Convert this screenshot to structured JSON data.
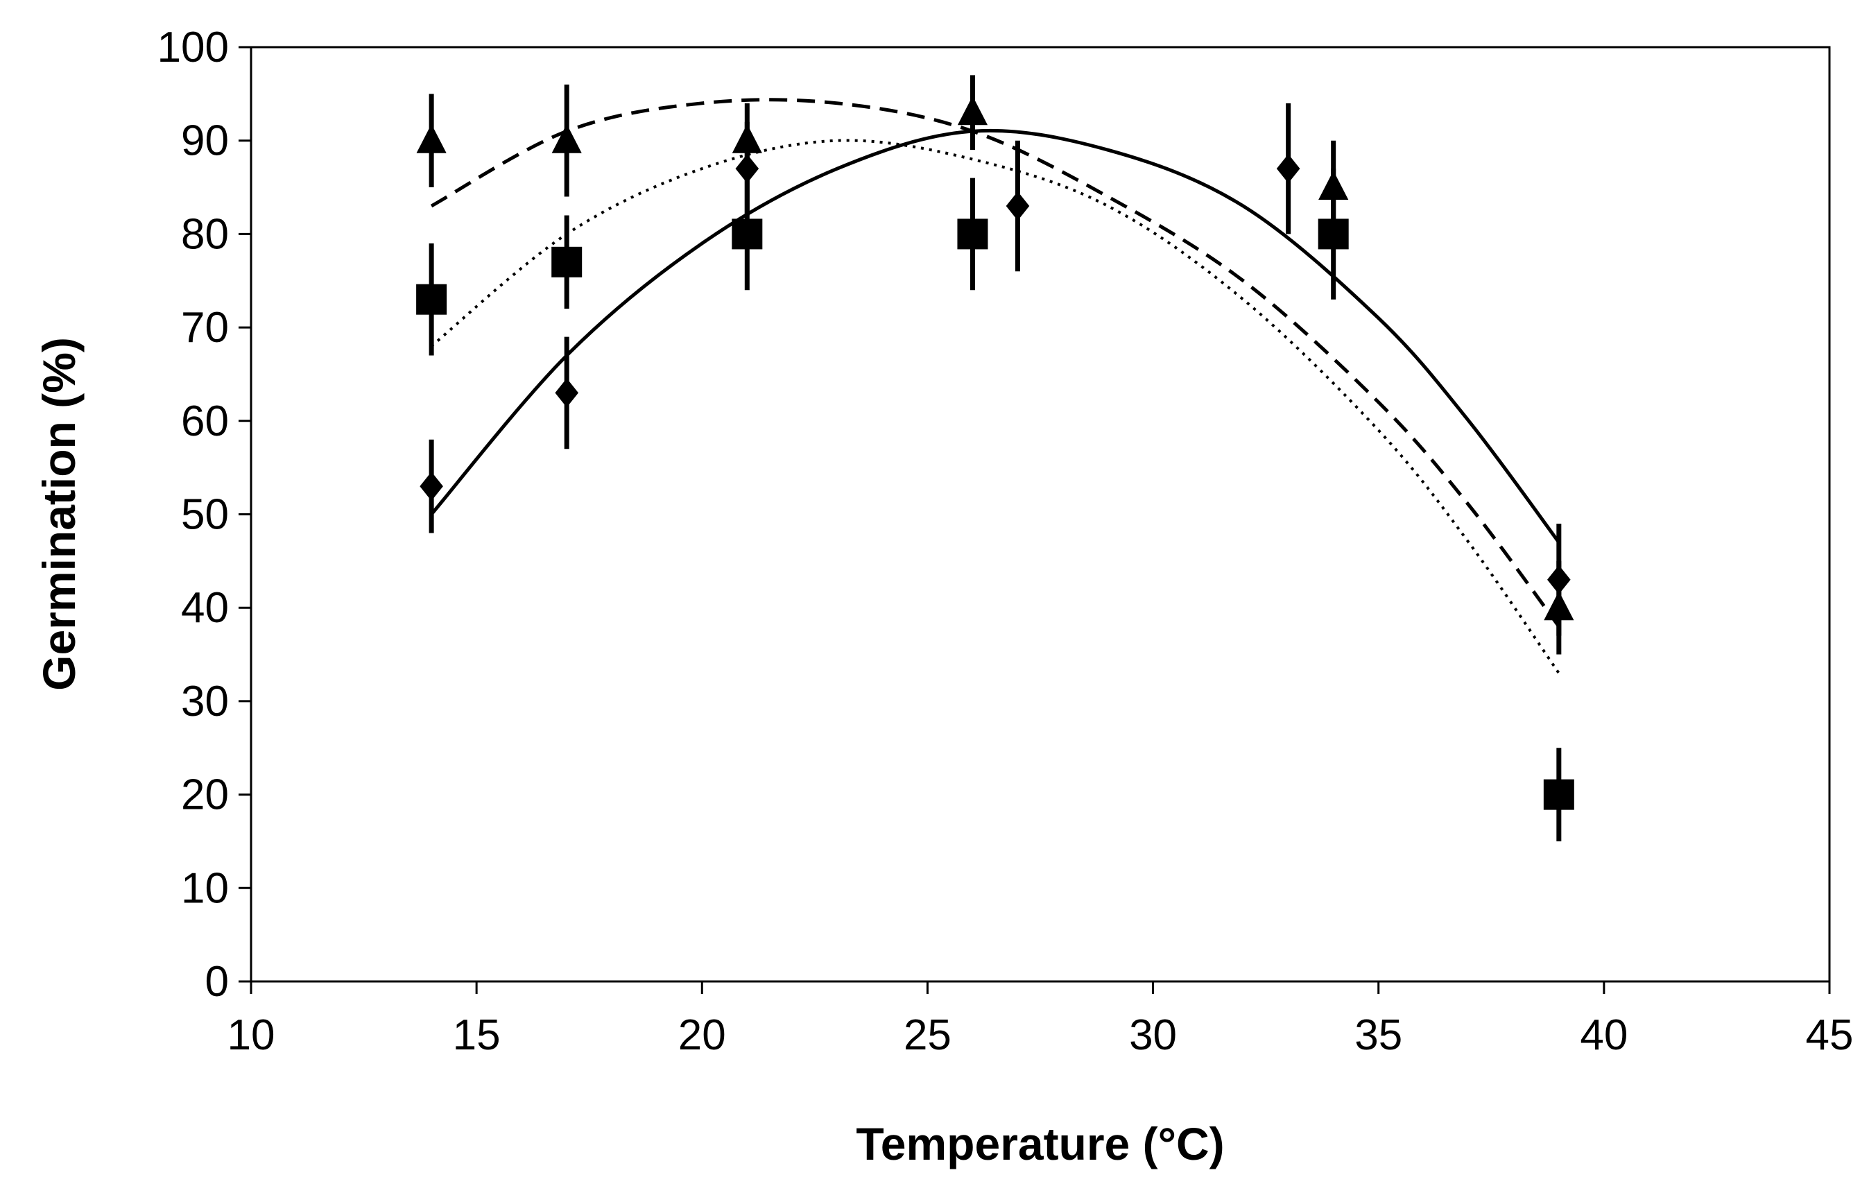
{
  "chart_data": {
    "type": "scatter",
    "title": "",
    "xlabel": "Temperature (°C)",
    "ylabel": "Germination (%)",
    "xlim": [
      10,
      45
    ],
    "ylim": [
      0,
      100
    ],
    "xticks": [
      10,
      15,
      20,
      25,
      30,
      35,
      40,
      45
    ],
    "yticks": [
      0,
      10,
      20,
      30,
      40,
      50,
      60,
      70,
      80,
      90,
      100
    ],
    "grid": false,
    "legend": "none",
    "series": [
      {
        "name": "diamonds",
        "marker": "diamond",
        "fit_line": "solid",
        "points": [
          {
            "x": 14,
            "y": 53,
            "err": 5
          },
          {
            "x": 17,
            "y": 63,
            "err": 6
          },
          {
            "x": 21,
            "y": 87,
            "err": 5
          },
          {
            "x": 27,
            "y": 83,
            "err": 7
          },
          {
            "x": 33,
            "y": 87,
            "err": 7
          },
          {
            "x": 39,
            "y": 43,
            "err": 6
          }
        ],
        "fit": {
          "x": [
            14,
            17,
            20,
            23,
            26,
            29,
            32,
            35,
            37,
            39
          ],
          "y": [
            50,
            67,
            79,
            87,
            91,
            89,
            83,
            71,
            60,
            47
          ]
        }
      },
      {
        "name": "squares",
        "marker": "square",
        "fit_line": "dotted",
        "points": [
          {
            "x": 14,
            "y": 73,
            "err": 6
          },
          {
            "x": 17,
            "y": 77,
            "err": 5
          },
          {
            "x": 21,
            "y": 80,
            "err": 6
          },
          {
            "x": 26,
            "y": 80,
            "err": 6
          },
          {
            "x": 34,
            "y": 80,
            "err": 7
          },
          {
            "x": 39,
            "y": 20,
            "err": 5
          }
        ],
        "fit": {
          "x": [
            14,
            17,
            20,
            23,
            26,
            29,
            32,
            35,
            37,
            39
          ],
          "y": [
            68,
            80,
            87,
            90,
            88,
            83,
            73,
            59,
            47,
            33
          ]
        }
      },
      {
        "name": "triangles",
        "marker": "triangle",
        "fit_line": "dashed",
        "points": [
          {
            "x": 14,
            "y": 90,
            "err": 5
          },
          {
            "x": 17,
            "y": 90,
            "err": 6
          },
          {
            "x": 21,
            "y": 90,
            "err": 4
          },
          {
            "x": 26,
            "y": 93,
            "err": 4
          },
          {
            "x": 34,
            "y": 85,
            "err": 5
          },
          {
            "x": 39,
            "y": 40,
            "err": 5
          }
        ],
        "fit": {
          "x": [
            14,
            17,
            20,
            23,
            26,
            29,
            32,
            35,
            37,
            39
          ],
          "y": [
            83,
            91,
            94,
            94,
            91,
            84,
            75,
            62,
            51,
            38
          ]
        }
      }
    ]
  }
}
